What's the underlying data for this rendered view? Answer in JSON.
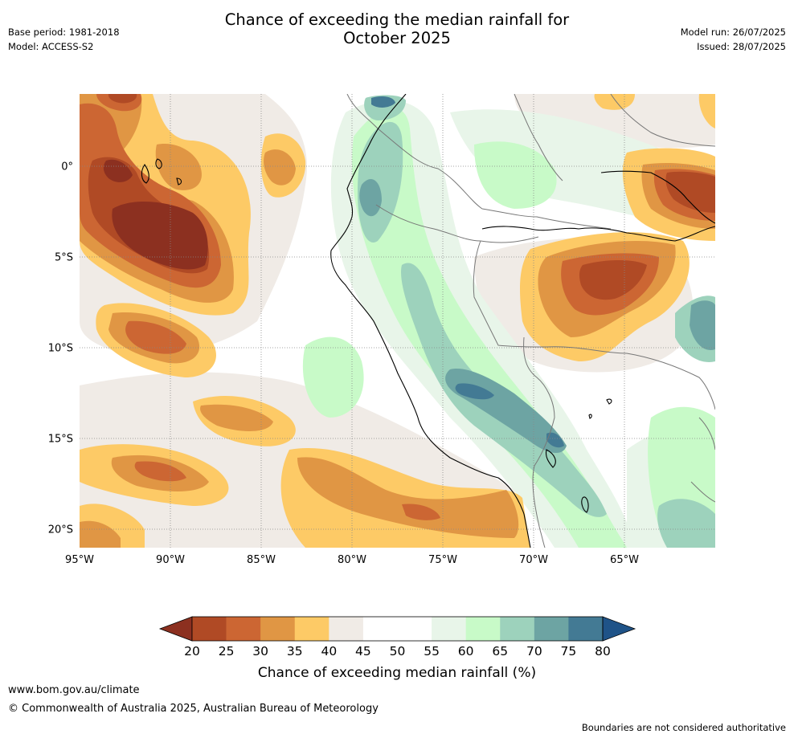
{
  "header": {
    "title_line1": "Chance of exceeding the median rainfall for",
    "title_line2": "October 2025",
    "base_period": "Base period: 1981-2018",
    "model": "Model: ACCESS-S2",
    "model_run": "Model run: 26/07/2025",
    "issued": "Issued: 28/07/2025"
  },
  "map": {
    "lon_range": [
      -95,
      -60
    ],
    "lat_range": [
      -21,
      4
    ],
    "x_ticks": [
      {
        "lon": -95,
        "label": "95°W"
      },
      {
        "lon": -90,
        "label": "90°W"
      },
      {
        "lon": -85,
        "label": "85°W"
      },
      {
        "lon": -80,
        "label": "80°W"
      },
      {
        "lon": -75,
        "label": "75°W"
      },
      {
        "lon": -70,
        "label": "70°W"
      },
      {
        "lon": -65,
        "label": "65°W"
      }
    ],
    "y_ticks": [
      {
        "lat": 0,
        "label": "0°"
      },
      {
        "lat": -5,
        "label": "5°S"
      },
      {
        "lat": -10,
        "label": "10°S"
      },
      {
        "lat": -15,
        "label": "15°S"
      },
      {
        "lat": -20,
        "label": "20°S"
      }
    ],
    "gridlines": "dotted"
  },
  "colorbar": {
    "title": "Chance of exceeding median rainfall (%)",
    "bins": [
      {
        "from": 20,
        "to": 25,
        "color": "#b04a25"
      },
      {
        "from": 25,
        "to": 30,
        "color": "#cc6633"
      },
      {
        "from": 30,
        "to": 35,
        "color": "#e09644"
      },
      {
        "from": 35,
        "to": 40,
        "color": "#fdca66"
      },
      {
        "from": 40,
        "to": 45,
        "color": "#f0ebe6"
      },
      {
        "from": 45,
        "to": 50,
        "color": "#ffffff"
      },
      {
        "from": 50,
        "to": 55,
        "color": "#ffffff"
      },
      {
        "from": 55,
        "to": 60,
        "color": "#e8f5e9"
      },
      {
        "from": 60,
        "to": 65,
        "color": "#c8fac8"
      },
      {
        "from": 65,
        "to": 70,
        "color": "#9dd2bc"
      },
      {
        "from": 70,
        "to": 75,
        "color": "#6da4a3"
      },
      {
        "from": 75,
        "to": 80,
        "color": "#437a94"
      }
    ],
    "under_color": "#8c3020",
    "over_color": "#1f5388",
    "tick_labels": [
      "20",
      "25",
      "30",
      "35",
      "40",
      "45",
      "50",
      "55",
      "60",
      "65",
      "70",
      "75",
      "80"
    ]
  },
  "footer": {
    "url": "www.bom.gov.au/climate",
    "copyright": "© Commonwealth of Australia 2025, Australian Bureau of Meteorology",
    "disclaimer": "Boundaries are not considered authoritative"
  }
}
